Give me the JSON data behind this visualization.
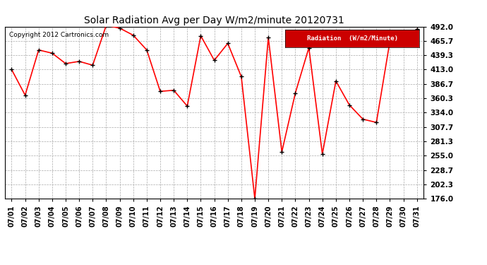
{
  "title": "Solar Radiation Avg per Day W/m2/minute 20120731",
  "copyright": "Copyright 2012 Cartronics.com",
  "legend_label": "Radiation  (W/m2/Minute)",
  "dates": [
    "07/01",
    "07/02",
    "07/03",
    "07/04",
    "07/05",
    "07/06",
    "07/07",
    "07/08",
    "07/09",
    "07/10",
    "07/11",
    "07/12",
    "07/13",
    "07/14",
    "07/15",
    "07/16",
    "07/17",
    "07/18",
    "07/19",
    "07/20",
    "07/21",
    "07/22",
    "07/23",
    "07/24",
    "07/25",
    "07/26",
    "07/27",
    "07/28",
    "07/29",
    "07/30",
    "07/31"
  ],
  "values": [
    413.0,
    366.0,
    449.0,
    443.0,
    424.0,
    428.0,
    421.0,
    494.0,
    489.0,
    476.0,
    449.0,
    373.0,
    375.0,
    346.0,
    475.0,
    430.0,
    461.0,
    400.0,
    176.0,
    472.0,
    262.0,
    370.0,
    453.0,
    258.0,
    392.0,
    348.0,
    322.0,
    316.0,
    465.0,
    460.0,
    487.0
  ],
  "ylim": [
    176.0,
    492.0
  ],
  "yticks": [
    176.0,
    202.3,
    228.7,
    255.0,
    281.3,
    307.7,
    334.0,
    360.3,
    386.7,
    413.0,
    439.3,
    465.7,
    492.0
  ],
  "line_color": "red",
  "marker_color": "black",
  "bg_color": "#ffffff",
  "plot_bg_color": "#ffffff",
  "grid_color": "#aaaaaa",
  "title_fontsize": 10,
  "legend_bg_color": "#cc0000",
  "legend_text_color": "#ffffff"
}
